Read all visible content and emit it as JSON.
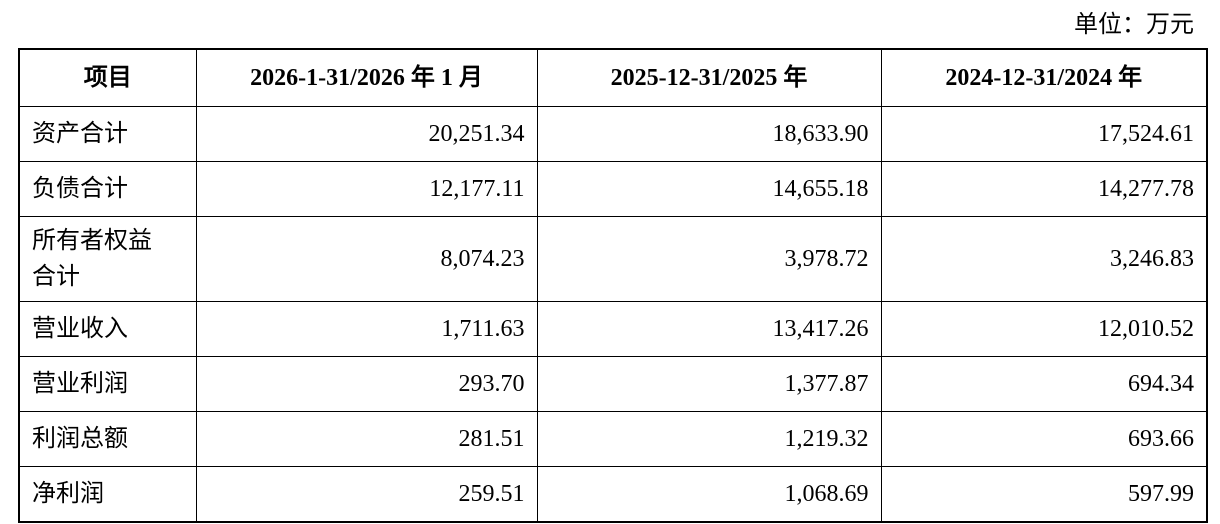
{
  "unit": "单位：万元",
  "table": {
    "header": [
      "项目",
      "2026-1-31/2026 年 1 月",
      "2025-12-31/2025 年",
      "2024-12-31/2024 年"
    ],
    "rows": [
      [
        "资产合计",
        "20,251.34",
        "18,633.90",
        "17,524.61"
      ],
      [
        "负债合计",
        "12,177.11",
        "14,655.18",
        "14,277.78"
      ],
      [
        "所有者权益合计",
        "8,074.23",
        "3,978.72",
        "3,246.83"
      ],
      [
        "营业收入",
        "1,711.63",
        "13,417.26",
        "12,010.52"
      ],
      [
        "营业利润",
        "293.70",
        "1,377.87",
        "694.34"
      ],
      [
        "利润总额",
        "281.51",
        "1,219.32",
        "693.66"
      ],
      [
        "净利润",
        "259.51",
        "1,068.69",
        "597.99"
      ]
    ]
  }
}
